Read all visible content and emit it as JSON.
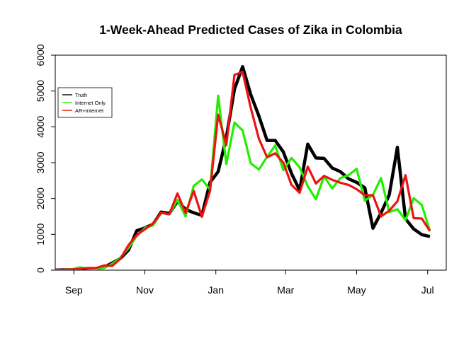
{
  "chart_data": {
    "type": "line",
    "title": "1-Week-Ahead Predicted Cases of Zika in Colombia",
    "xlabel": "",
    "ylabel": "",
    "x_axis": {
      "start_date": "2015-08-16",
      "end_date": "2016-07-17",
      "tick_labels": [
        {
          "label": "Sep",
          "date": "2015-09-01"
        },
        {
          "label": "Nov",
          "date": "2015-11-01"
        },
        {
          "label": "Jan",
          "date": "2016-01-01"
        },
        {
          "label": "Mar",
          "date": "2016-03-01"
        },
        {
          "label": "May",
          "date": "2016-05-01"
        },
        {
          "label": "Jul",
          "date": "2016-07-01"
        }
      ]
    },
    "ylim": [
      0,
      6000
    ],
    "y_ticks": [
      0,
      1000,
      2000,
      3000,
      4000,
      5000,
      6000
    ],
    "grid": false,
    "legend": {
      "placement": "left",
      "entries": [
        {
          "name": "Truth",
          "color": "#000000"
        },
        {
          "name": "Internet Only",
          "color": "#22ee00"
        },
        {
          "name": "AR+Internet",
          "color": "#ee1111"
        }
      ]
    },
    "x": [
      "2015-08-16",
      "2015-08-23",
      "2015-08-30",
      "2015-09-06",
      "2015-09-13",
      "2015-09-20",
      "2015-09-27",
      "2015-10-04",
      "2015-10-11",
      "2015-10-18",
      "2015-10-25",
      "2015-11-01",
      "2015-11-08",
      "2015-11-15",
      "2015-11-22",
      "2015-11-29",
      "2015-12-06",
      "2015-12-13",
      "2015-12-20",
      "2015-12-27",
      "2016-01-03",
      "2016-01-10",
      "2016-01-17",
      "2016-01-24",
      "2016-01-31",
      "2016-02-07",
      "2016-02-14",
      "2016-02-21",
      "2016-02-28",
      "2016-03-06",
      "2016-03-13",
      "2016-03-20",
      "2016-03-27",
      "2016-04-03",
      "2016-04-10",
      "2016-04-17",
      "2016-04-24",
      "2016-05-01",
      "2016-05-08",
      "2016-05-15",
      "2016-05-22",
      "2016-05-29",
      "2016-06-05",
      "2016-06-12",
      "2016-06-19",
      "2016-06-26",
      "2016-07-03",
      "2016-07-10",
      "2016-07-17"
    ],
    "series": [
      {
        "name": "Truth",
        "color": "#000000",
        "values": [
          0,
          10,
          10,
          20,
          30,
          40,
          80,
          200,
          330,
          560,
          1100,
          1180,
          1280,
          1620,
          1580,
          1920,
          1700,
          1600,
          1530,
          2450,
          2750,
          3700,
          5050,
          5680,
          4900,
          4300,
          3620,
          3620,
          3300,
          2700,
          2230,
          3520,
          3130,
          3120,
          2850,
          2750,
          2550,
          2450,
          2300,
          1170,
          1600,
          2100,
          3430,
          1430,
          1150,
          990,
          940,
          null,
          null
        ]
      },
      {
        "name": "Internet Only",
        "color": "#22ee00",
        "values": [
          0,
          10,
          20,
          80,
          40,
          30,
          60,
          180,
          350,
          620,
          950,
          1180,
          1250,
          1600,
          1560,
          1960,
          1500,
          2350,
          2530,
          2250,
          4870,
          2960,
          4120,
          3900,
          2980,
          2810,
          3160,
          3480,
          2790,
          3130,
          2870,
          2340,
          1980,
          2620,
          2280,
          2570,
          2650,
          2830,
          1940,
          2100,
          2570,
          1620,
          1700,
          1400,
          2010,
          1820,
          1090,
          null,
          null
        ]
      },
      {
        "name": "AR+Internet",
        "color": "#ee1111",
        "values": [
          0,
          10,
          20,
          30,
          60,
          60,
          130,
          120,
          320,
          700,
          980,
          1140,
          1300,
          1600,
          1560,
          2140,
          1600,
          2210,
          1490,
          2210,
          4340,
          3490,
          5450,
          5530,
          4530,
          3670,
          3150,
          3260,
          3000,
          2380,
          2160,
          2890,
          2420,
          2630,
          2520,
          2440,
          2380,
          2260,
          2090,
          2090,
          1500,
          1660,
          1920,
          2650,
          1450,
          1440,
          1090,
          null,
          null
        ]
      }
    ]
  }
}
